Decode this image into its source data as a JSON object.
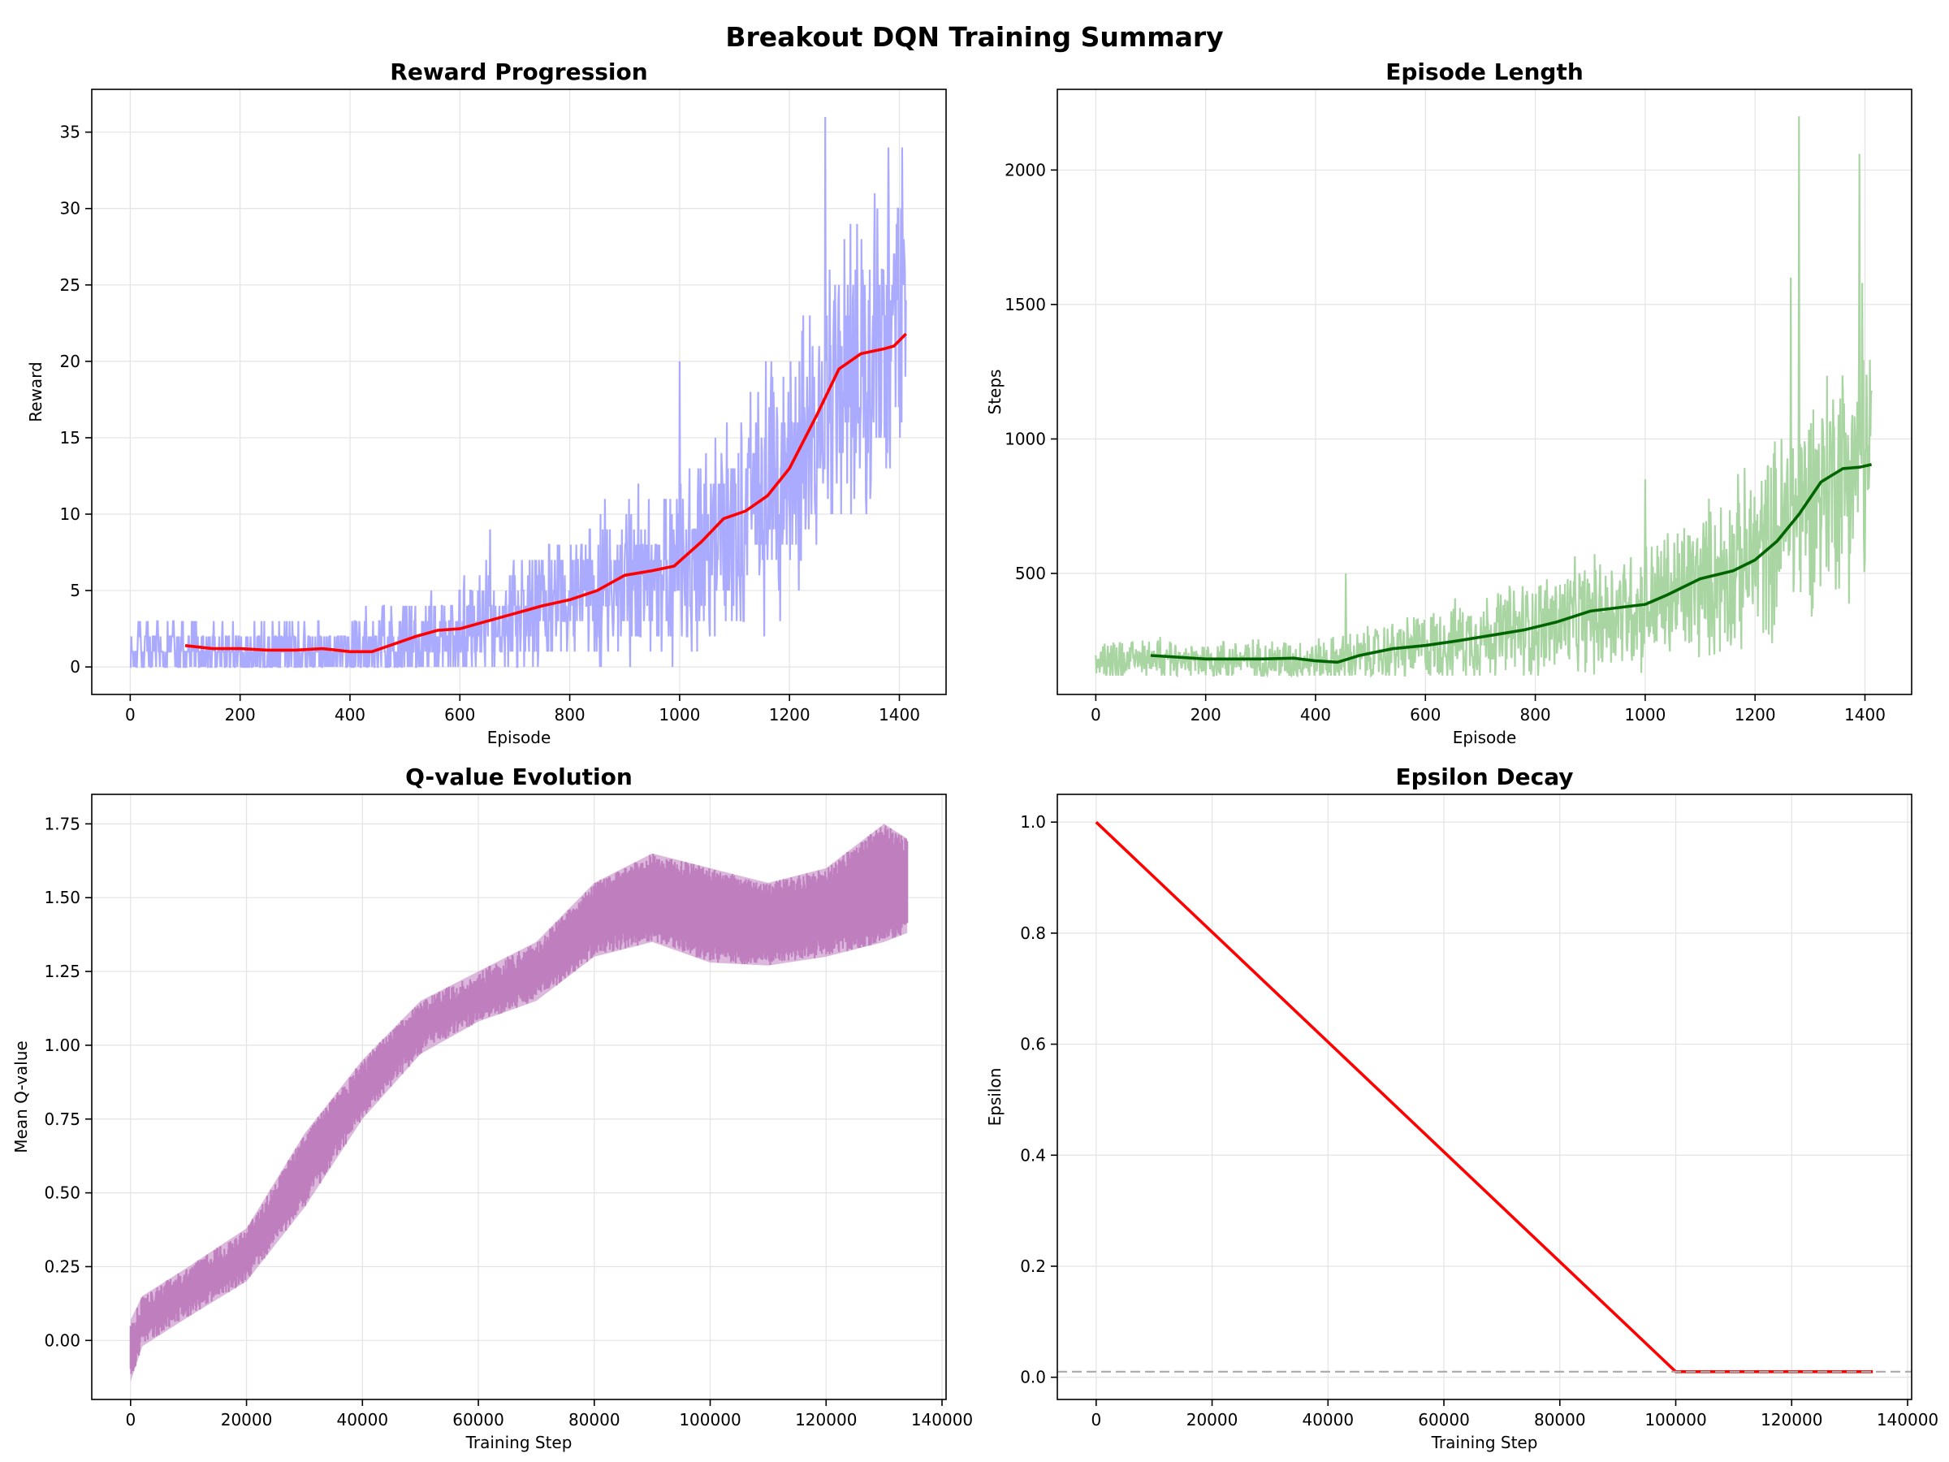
{
  "figure": {
    "title": "Breakout DQN Training Summary"
  },
  "chart_data": [
    {
      "id": "reward",
      "type": "line",
      "title": "Reward Progression",
      "xlabel": "Episode",
      "ylabel": "Reward",
      "xlim": [
        -70,
        1485
      ],
      "ylim": [
        -1.8,
        37.8
      ],
      "xticks": [
        0,
        200,
        400,
        600,
        800,
        1000,
        1200,
        1400
      ],
      "yticks": [
        0,
        5,
        10,
        15,
        20,
        25,
        30,
        35
      ],
      "grid": true,
      "series": [
        {
          "kind": "raw",
          "color": "#aaaaff",
          "x_range": [
            0,
            1412
          ],
          "trend": [
            [
              0,
              1
            ],
            [
              200,
              1
            ],
            [
              400,
              1
            ],
            [
              450,
              1.2
            ],
            [
              600,
              2.5
            ],
            [
              800,
              4.5
            ],
            [
              1000,
              6.7
            ],
            [
              1100,
              9.5
            ],
            [
              1200,
              12.5
            ],
            [
              1300,
              19
            ],
            [
              1360,
              20.5
            ],
            [
              1412,
              21.5
            ]
          ],
          "spread": [
            [
              0,
              1.5
            ],
            [
              400,
              2
            ],
            [
              600,
              3
            ],
            [
              800,
              3.5
            ],
            [
              1000,
              5
            ],
            [
              1200,
              7
            ],
            [
              1412,
              9
            ]
          ],
          "peaks": [
            [
              1265,
              36
            ],
            [
              1380,
              34
            ],
            [
              1405,
              34
            ],
            [
              1000,
              20
            ],
            [
              655,
              9
            ]
          ]
        },
        {
          "kind": "moving_average",
          "color": "#ff0000",
          "points": [
            [
              100,
              1.4
            ],
            [
              150,
              1.2
            ],
            [
              200,
              1.2
            ],
            [
              250,
              1.1
            ],
            [
              300,
              1.1
            ],
            [
              350,
              1.2
            ],
            [
              400,
              1.0
            ],
            [
              440,
              1.0
            ],
            [
              480,
              1.5
            ],
            [
              520,
              2.0
            ],
            [
              560,
              2.4
            ],
            [
              600,
              2.5
            ],
            [
              650,
              3.0
            ],
            [
              700,
              3.5
            ],
            [
              750,
              4.0
            ],
            [
              800,
              4.4
            ],
            [
              850,
              5.0
            ],
            [
              900,
              6.0
            ],
            [
              950,
              6.3
            ],
            [
              990,
              6.6
            ],
            [
              1040,
              8.2
            ],
            [
              1080,
              9.7
            ],
            [
              1120,
              10.2
            ],
            [
              1160,
              11.2
            ],
            [
              1200,
              13.0
            ],
            [
              1250,
              16.5
            ],
            [
              1290,
              19.5
            ],
            [
              1330,
              20.5
            ],
            [
              1370,
              20.8
            ],
            [
              1390,
              21.0
            ],
            [
              1412,
              21.8
            ]
          ]
        }
      ]
    },
    {
      "id": "length",
      "type": "line",
      "title": "Episode Length",
      "xlabel": "Episode",
      "ylabel": "Steps",
      "xlim": [
        -70,
        1485
      ],
      "ylim": [
        50,
        2300
      ],
      "xticks": [
        0,
        200,
        400,
        600,
        800,
        1000,
        1200,
        1400
      ],
      "yticks": [
        500,
        1000,
        1500,
        2000
      ],
      "grid": true,
      "series": [
        {
          "kind": "raw",
          "color": "#a8d5a2",
          "x_range": [
            0,
            1412
          ],
          "trend": [
            [
              0,
              180
            ],
            [
              200,
              180
            ],
            [
              440,
              175
            ],
            [
              600,
              230
            ],
            [
              800,
              300
            ],
            [
              1000,
              380
            ],
            [
              1100,
              460
            ],
            [
              1200,
              560
            ],
            [
              1300,
              780
            ],
            [
              1350,
              880
            ],
            [
              1412,
              910
            ]
          ],
          "spread": [
            [
              0,
              60
            ],
            [
              400,
              70
            ],
            [
              600,
              110
            ],
            [
              800,
              160
            ],
            [
              1000,
              200
            ],
            [
              1200,
              280
            ],
            [
              1412,
              400
            ]
          ],
          "peaks": [
            [
              1280,
              2200
            ],
            [
              1390,
              2060
            ],
            [
              1265,
              1600
            ],
            [
              1395,
              1580
            ],
            [
              1000,
              850
            ],
            [
              455,
              500
            ]
          ]
        },
        {
          "kind": "moving_average",
          "color": "#006400",
          "points": [
            [
              100,
              195
            ],
            [
              200,
              182
            ],
            [
              300,
              182
            ],
            [
              360,
              185
            ],
            [
              400,
              175
            ],
            [
              440,
              170
            ],
            [
              480,
              195
            ],
            [
              540,
              220
            ],
            [
              600,
              232
            ],
            [
              660,
              250
            ],
            [
              720,
              270
            ],
            [
              780,
              290
            ],
            [
              840,
              320
            ],
            [
              900,
              360
            ],
            [
              960,
              375
            ],
            [
              1000,
              385
            ],
            [
              1040,
              420
            ],
            [
              1100,
              480
            ],
            [
              1160,
              510
            ],
            [
              1200,
              550
            ],
            [
              1240,
              620
            ],
            [
              1280,
              720
            ],
            [
              1320,
              840
            ],
            [
              1360,
              890
            ],
            [
              1390,
              895
            ],
            [
              1412,
              905
            ]
          ]
        }
      ]
    },
    {
      "id": "qvalue",
      "type": "area",
      "title": "Q-value Evolution",
      "xlabel": "Training Step",
      "ylabel": "Mean Q-value",
      "xlim": [
        -6700,
        140700
      ],
      "ylim": [
        -0.2,
        1.85
      ],
      "xticks": [
        0,
        20000,
        40000,
        60000,
        80000,
        100000,
        120000,
        140000
      ],
      "yticks": [
        0.0,
        0.25,
        0.5,
        0.75,
        1.0,
        1.25,
        1.5,
        1.75
      ],
      "grid": true,
      "series": [
        {
          "kind": "band",
          "color": "#bf7fbf",
          "upper": [
            [
              0,
              0.07
            ],
            [
              2000,
              0.15
            ],
            [
              10000,
              0.25
            ],
            [
              20000,
              0.38
            ],
            [
              30000,
              0.7
            ],
            [
              40000,
              0.95
            ],
            [
              50000,
              1.15
            ],
            [
              60000,
              1.25
            ],
            [
              70000,
              1.35
            ],
            [
              80000,
              1.55
            ],
            [
              90000,
              1.65
            ],
            [
              100000,
              1.6
            ],
            [
              110000,
              1.55
            ],
            [
              120000,
              1.6
            ],
            [
              130000,
              1.75
            ],
            [
              134000,
              1.7
            ]
          ],
          "lower": [
            [
              0,
              -0.14
            ],
            [
              2000,
              -0.02
            ],
            [
              10000,
              0.08
            ],
            [
              20000,
              0.2
            ],
            [
              30000,
              0.45
            ],
            [
              40000,
              0.75
            ],
            [
              50000,
              0.97
            ],
            [
              60000,
              1.08
            ],
            [
              70000,
              1.15
            ],
            [
              80000,
              1.3
            ],
            [
              90000,
              1.35
            ],
            [
              100000,
              1.28
            ],
            [
              110000,
              1.27
            ],
            [
              120000,
              1.3
            ],
            [
              130000,
              1.35
            ],
            [
              134000,
              1.38
            ]
          ]
        }
      ]
    },
    {
      "id": "epsilon",
      "type": "line",
      "title": "Epsilon Decay",
      "xlabel": "Training Step",
      "ylabel": "Epsilon",
      "xlim": [
        -6700,
        140700
      ],
      "ylim": [
        -0.04,
        1.05
      ],
      "xticks": [
        0,
        20000,
        40000,
        60000,
        80000,
        100000,
        120000,
        140000
      ],
      "yticks": [
        0.0,
        0.2,
        0.4,
        0.6,
        0.8,
        1.0
      ],
      "grid": true,
      "series": [
        {
          "kind": "line",
          "color": "#ff0000",
          "points": [
            [
              0,
              1.0
            ],
            [
              100000,
              0.01
            ],
            [
              134000,
              0.01
            ]
          ]
        },
        {
          "kind": "hline",
          "color": "#aaaaaa",
          "dashed": true,
          "y": 0.01
        }
      ]
    }
  ]
}
